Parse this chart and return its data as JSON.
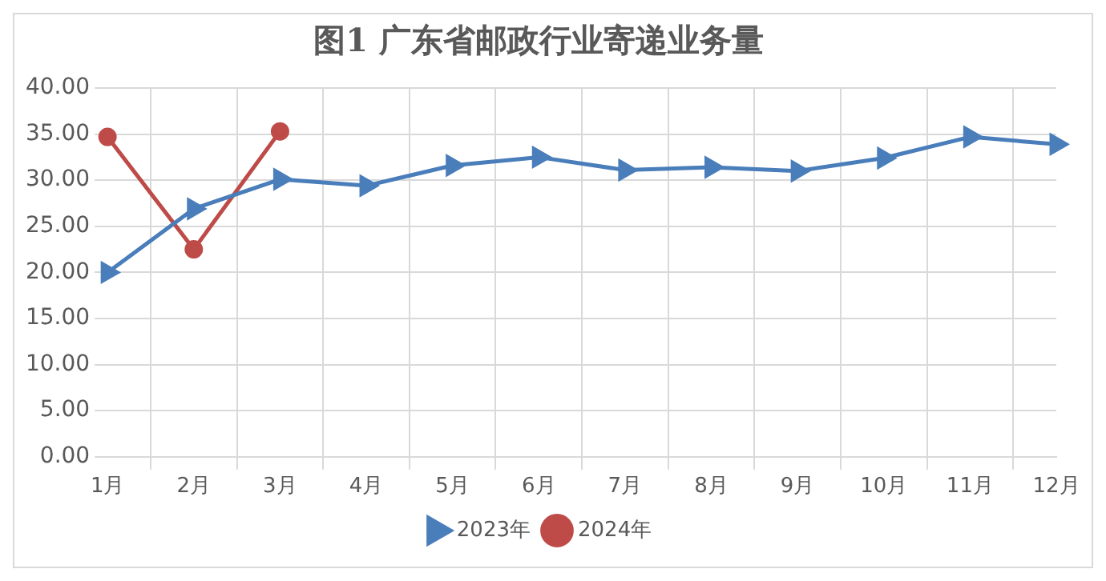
{
  "chart_data": {
    "type": "line",
    "title": "图1 广东省邮政行业寄递业务量",
    "categories": [
      "1月",
      "2月",
      "3月",
      "4月",
      "5月",
      "6月",
      "7月",
      "8月",
      "9月",
      "10月",
      "11月",
      "12月"
    ],
    "series": [
      {
        "name": "2023年",
        "color": "#4a7ebb",
        "marker": "triangle",
        "values": [
          20.0,
          26.9,
          30.1,
          29.4,
          31.6,
          32.5,
          31.1,
          31.4,
          31.0,
          32.4,
          34.7,
          33.9
        ]
      },
      {
        "name": "2024年",
        "color": "#be4b48",
        "marker": "circle",
        "values": [
          34.7,
          22.5,
          35.3,
          null,
          null,
          null,
          null,
          null,
          null,
          null,
          null,
          null
        ]
      }
    ],
    "ylim": [
      0,
      40
    ],
    "yticks": [
      {
        "value": 0,
        "label": "0.00"
      },
      {
        "value": 5,
        "label": "5.00"
      },
      {
        "value": 10,
        "label": "10.00"
      },
      {
        "value": 15,
        "label": "15.00"
      },
      {
        "value": 20,
        "label": "20.00"
      },
      {
        "value": 25,
        "label": "25.00"
      },
      {
        "value": 30,
        "label": "30.00"
      },
      {
        "value": 35,
        "label": "35.00"
      },
      {
        "value": 40,
        "label": "40.00"
      }
    ],
    "grid": true,
    "legend": "bottom"
  }
}
